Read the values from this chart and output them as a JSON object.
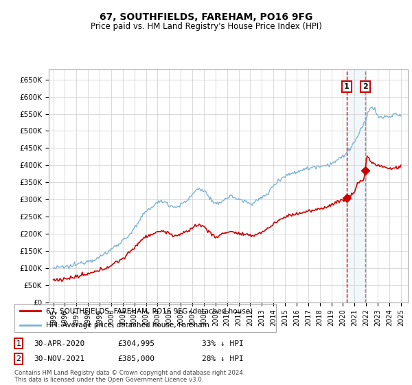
{
  "title": "67, SOUTHFIELDS, FAREHAM, PO16 9FG",
  "subtitle": "Price paid vs. HM Land Registry's House Price Index (HPI)",
  "ylabel_ticks": [
    "£0",
    "£50K",
    "£100K",
    "£150K",
    "£200K",
    "£250K",
    "£300K",
    "£350K",
    "£400K",
    "£450K",
    "£500K",
    "£550K",
    "£600K",
    "£650K"
  ],
  "ytick_values": [
    0,
    50000,
    100000,
    150000,
    200000,
    250000,
    300000,
    350000,
    400000,
    450000,
    500000,
    550000,
    600000,
    650000
  ],
  "ylim": [
    0,
    680000
  ],
  "xlim_start": 1994.6,
  "xlim_end": 2025.6,
  "hpi_color": "#7ab3d4",
  "price_color": "#cc0000",
  "marker1_date": 2020.33,
  "marker2_date": 2021.92,
  "marker1_price": 304995,
  "marker2_price": 385000,
  "sale1_label": "1",
  "sale2_label": "2",
  "legend_line1": "67, SOUTHFIELDS, FAREHAM, PO16 9FG (detached house)",
  "legend_line2": "HPI: Average price, detached house, Fareham",
  "table_row1": [
    "1",
    "30-APR-2020",
    "£304,995",
    "33% ↓ HPI"
  ],
  "table_row2": [
    "2",
    "30-NOV-2021",
    "£385,000",
    "28% ↓ HPI"
  ],
  "footnote": "Contains HM Land Registry data © Crown copyright and database right 2024.\nThis data is licensed under the Open Government Licence v3.0.",
  "background_color": "#ffffff",
  "grid_color": "#cccccc",
  "shaded_region_color": "#cce0f0"
}
